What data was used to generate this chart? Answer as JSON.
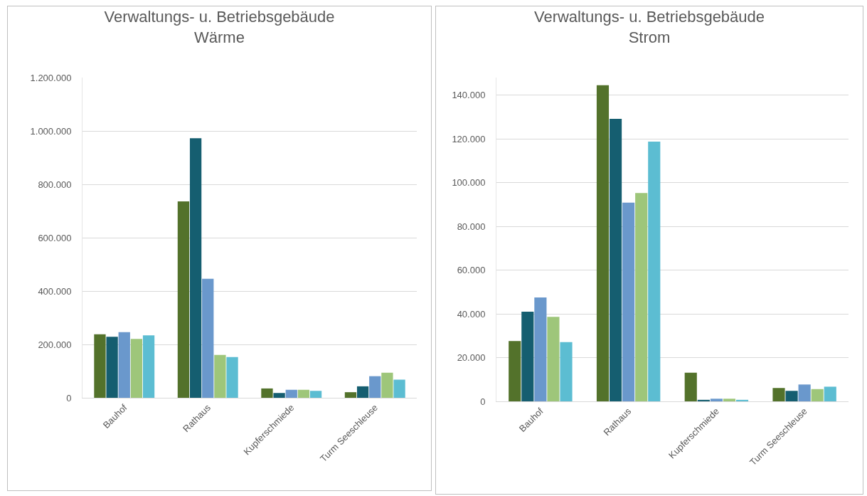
{
  "chart_data": [
    {
      "type": "bar",
      "title": "Verwaltungs- u. Betriebsgebäude\nWärme",
      "categories": [
        "Bauhof",
        "Rathaus",
        "Kupferschmiede",
        "Turm Seeschleuse"
      ],
      "series": [
        {
          "color": "#53722b",
          "values": [
            238000,
            736000,
            35000,
            21000
          ]
        },
        {
          "color": "#155e70",
          "values": [
            229000,
            973000,
            18000,
            43000
          ]
        },
        {
          "color": "#6a98cc",
          "values": [
            246000,
            446000,
            30000,
            81000
          ]
        },
        {
          "color": "#9ec67a",
          "values": [
            221000,
            161000,
            30000,
            94000
          ]
        },
        {
          "color": "#5cbdd2",
          "values": [
            234000,
            153000,
            26000,
            68000
          ]
        }
      ],
      "ylim": [
        0,
        1200000
      ],
      "yticks": [
        {
          "value": 0,
          "label": "0"
        },
        {
          "value": 200000,
          "label": "200.000"
        },
        {
          "value": 400000,
          "label": "400.000"
        },
        {
          "value": 600000,
          "label": "600.000"
        },
        {
          "value": 800000,
          "label": "800.000"
        },
        {
          "value": 1000000,
          "label": "1.000.000"
        },
        {
          "value": 1200000,
          "label": "1.200.000"
        }
      ],
      "grid": "y"
    },
    {
      "type": "bar",
      "title": "Verwaltungs- u. Betriebsgebäude\nStrom",
      "categories": [
        "Bauhof",
        "Rathaus",
        "Kupferschmiede",
        "Turm Seeschleuse"
      ],
      "series": [
        {
          "color": "#53722b",
          "values": [
            27600,
            144500,
            13100,
            6100
          ]
        },
        {
          "color": "#155e70",
          "values": [
            41000,
            129100,
            700,
            4800
          ]
        },
        {
          "color": "#6a98cc",
          "values": [
            47500,
            90800,
            1200,
            7700
          ]
        },
        {
          "color": "#9ec67a",
          "values": [
            38600,
            95200,
            1200,
            5600
          ]
        },
        {
          "color": "#5cbdd2",
          "values": [
            27100,
            118700,
            700,
            6700
          ]
        }
      ],
      "ylim": [
        0,
        148000
      ],
      "yticks": [
        {
          "value": 0,
          "label": "0"
        },
        {
          "value": 20000,
          "label": "20.000"
        },
        {
          "value": 40000,
          "label": "40.000"
        },
        {
          "value": 60000,
          "label": "60.000"
        },
        {
          "value": 80000,
          "label": "80.000"
        },
        {
          "value": 100000,
          "label": "100.000"
        },
        {
          "value": 120000,
          "label": "120.000"
        },
        {
          "value": 140000,
          "label": "140.000"
        }
      ],
      "grid": "y"
    }
  ]
}
